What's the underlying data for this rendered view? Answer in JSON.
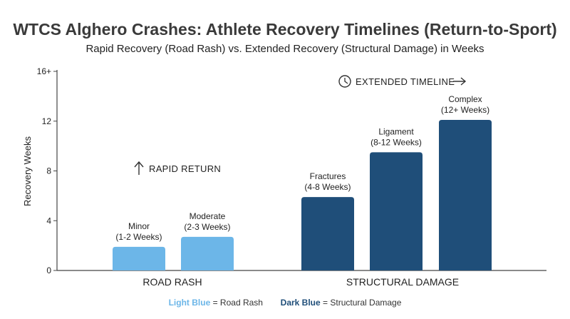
{
  "chart_data": {
    "type": "bar",
    "title": "WTCS Alghero Crashes: Athlete Recovery Timelines (Return-to-Sport)",
    "subtitle": "Rapid Recovery (Road Rash) vs. Extended Recovery (Structural Damage) in Weeks",
    "ylabel": "Recovery Weeks",
    "ylim": [
      0,
      16
    ],
    "yticks": [
      "0",
      "4",
      "8",
      "12",
      "16+"
    ],
    "ytick_values": [
      0,
      4,
      8,
      12,
      16
    ],
    "grid": false,
    "groups": [
      {
        "name": "ROAD RASH",
        "color": "#6cb6e8",
        "bars": [
          {
            "label": "Minor",
            "sub": "(1-2 Weeks)",
            "value": 1.9
          },
          {
            "label": "Moderate",
            "sub": "(2-3 Weeks)",
            "value": 2.7
          }
        ]
      },
      {
        "name": "STRUCTURAL DAMAGE",
        "color": "#1f4e79",
        "bars": [
          {
            "label": "Fractures",
            "sub": "(4-8 Weeks)",
            "value": 5.9
          },
          {
            "label": "Ligament",
            "sub": "(8-12 Weeks)",
            "value": 9.5
          },
          {
            "label": "Complex",
            "sub": "(12+ Weeks)",
            "value": 12.1
          }
        ]
      }
    ],
    "annotations": [
      {
        "text": "RAPID RETURN",
        "icon": "arrow-up-icon"
      },
      {
        "text": "EXTENDED TIMELINE",
        "icon": "clock-icon",
        "trailing_icon": "arrow-right-icon"
      }
    ],
    "legend": {
      "light_label": "Light Blue",
      "light_text": " = Road Rash",
      "dark_label": "Dark Blue",
      "dark_text": " = Structural Damage",
      "placement": "bottom"
    }
  }
}
